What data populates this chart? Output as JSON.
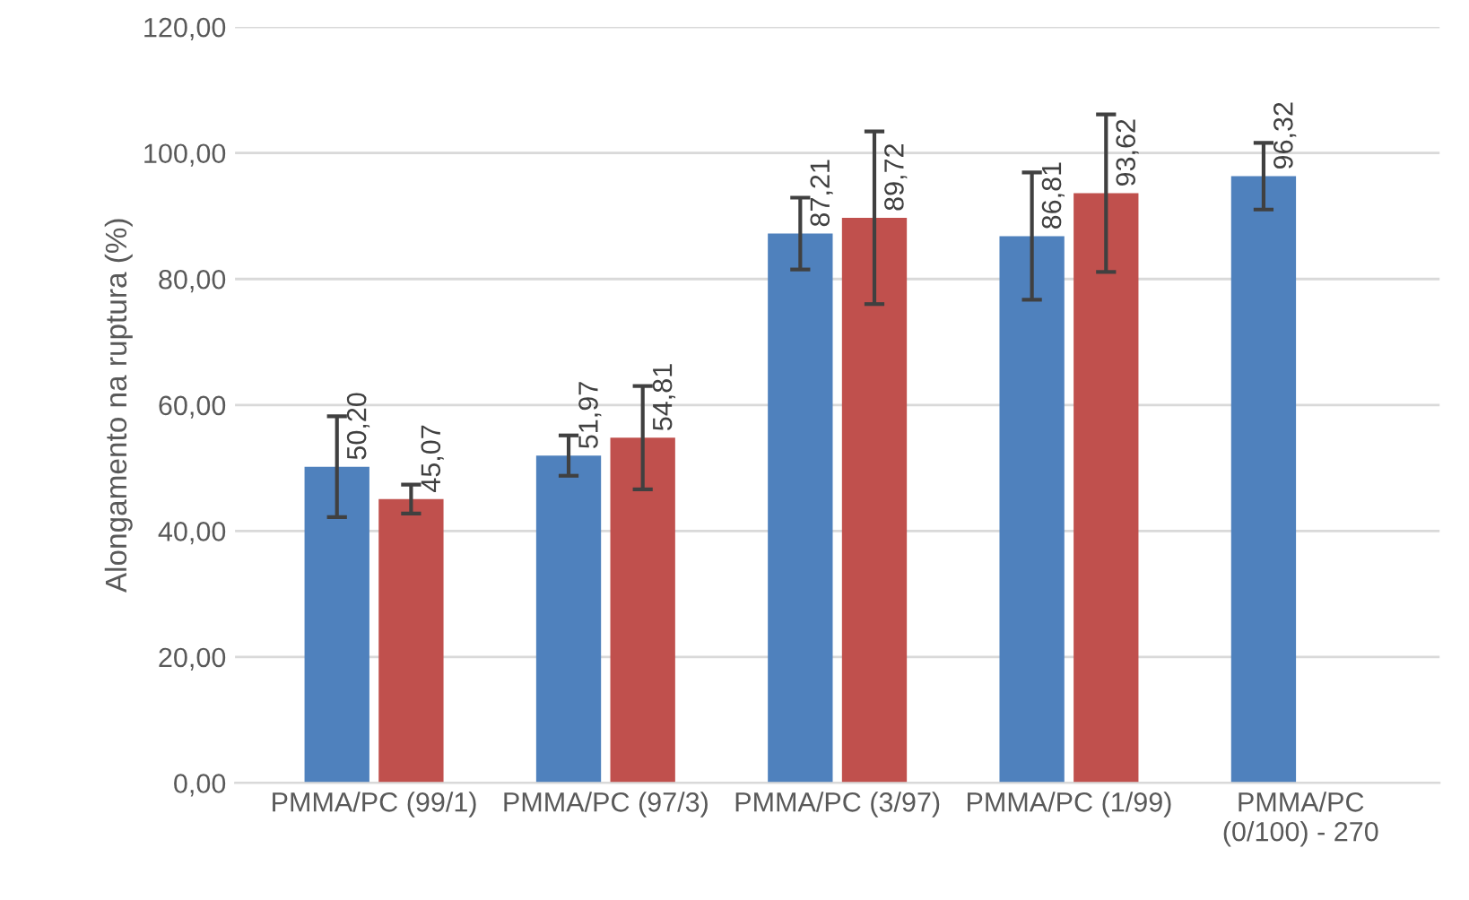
{
  "chart_data": {
    "type": "bar",
    "ylabel": "Alongamento na ruptura (%)",
    "categories": [
      "PMMA/PC (99/1)",
      "PMMA/PC (97/3)",
      "PMMA/PC (3/97)",
      "PMMA/PC (1/99)",
      "PMMA/PC\n(0/100) - 270"
    ],
    "series": [
      {
        "color": "#4f81bd",
        "values": [
          50.2,
          51.97,
          87.21,
          86.81,
          96.32
        ],
        "errors": [
          8.0,
          3.2,
          5.7,
          10.1,
          5.3
        ],
        "value_labels": [
          "50,20",
          "51,97",
          "87,21",
          "86,81",
          "96,32"
        ]
      },
      {
        "color": "#c0504d",
        "values": [
          45.07,
          54.81,
          89.72,
          93.62,
          null
        ],
        "errors": [
          2.3,
          8.2,
          13.7,
          12.5,
          null
        ],
        "value_labels": [
          "45,07",
          "54,81",
          "89,72",
          "93,62",
          null
        ]
      }
    ],
    "ylim": [
      0,
      120
    ],
    "yticks": [
      {
        "value": 0,
        "label": "0,00"
      },
      {
        "value": 20,
        "label": "20,00"
      },
      {
        "value": 40,
        "label": "40,00"
      },
      {
        "value": 60,
        "label": "60,00"
      },
      {
        "value": 80,
        "label": "80,00"
      },
      {
        "value": 100,
        "label": "100,00"
      },
      {
        "value": 120,
        "label": "120,00"
      }
    ],
    "grid": "y"
  }
}
